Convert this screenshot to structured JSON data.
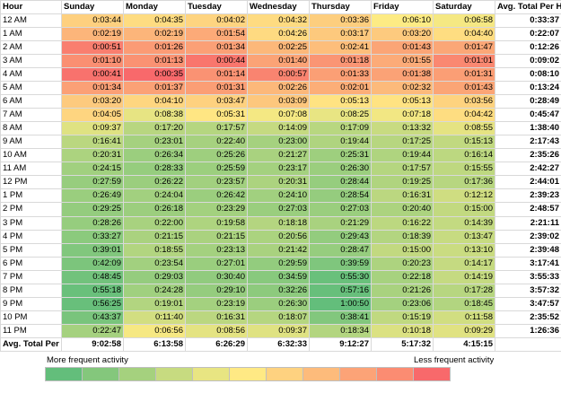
{
  "headers": [
    "Hour",
    "Sunday",
    "Monday",
    "Tuesday",
    "Wednesday",
    "Thursday",
    "Friday",
    "Saturday",
    "Avg. Total Per H"
  ],
  "rows": [
    {
      "hour": "12 AM",
      "values": [
        "0:03:44",
        "0:04:35",
        "0:04:02",
        "0:04:32",
        "0:03:36",
        "0:06:10",
        "0:06:58"
      ],
      "total": "0:33:37"
    },
    {
      "hour": "1 AM",
      "values": [
        "0:02:19",
        "0:02:19",
        "0:01:54",
        "0:04:26",
        "0:03:17",
        "0:03:20",
        "0:04:40"
      ],
      "total": "0:22:07"
    },
    {
      "hour": "2 AM",
      "values": [
        "0:00:51",
        "0:01:26",
        "0:01:34",
        "0:02:25",
        "0:02:41",
        "0:01:43",
        "0:01:47"
      ],
      "total": "0:12:26"
    },
    {
      "hour": "3 AM",
      "values": [
        "0:01:10",
        "0:01:13",
        "0:00:44",
        "0:01:40",
        "0:01:18",
        "0:01:55",
        "0:01:01"
      ],
      "total": "0:09:02"
    },
    {
      "hour": "4 AM",
      "values": [
        "0:00:41",
        "0:00:35",
        "0:01:14",
        "0:00:57",
        "0:01:33",
        "0:01:38",
        "0:01:31"
      ],
      "total": "0:08:10"
    },
    {
      "hour": "5 AM",
      "values": [
        "0:01:34",
        "0:01:37",
        "0:01:31",
        "0:02:26",
        "0:02:01",
        "0:02:32",
        "0:01:43"
      ],
      "total": "0:13:24"
    },
    {
      "hour": "6 AM",
      "values": [
        "0:03:20",
        "0:04:10",
        "0:03:47",
        "0:03:09",
        "0:05:13",
        "0:05:13",
        "0:03:56"
      ],
      "total": "0:28:49"
    },
    {
      "hour": "7 AM",
      "values": [
        "0:04:05",
        "0:08:38",
        "0:05:31",
        "0:07:08",
        "0:08:25",
        "0:07:18",
        "0:04:42"
      ],
      "total": "0:45:47"
    },
    {
      "hour": "8 AM",
      "values": [
        "0:09:37",
        "0:17:20",
        "0:17:57",
        "0:14:09",
        "0:17:09",
        "0:13:32",
        "0:08:55"
      ],
      "total": "1:38:40"
    },
    {
      "hour": "9 AM",
      "values": [
        "0:16:41",
        "0:23:01",
        "0:22:40",
        "0:23:00",
        "0:19:44",
        "0:17:25",
        "0:15:13"
      ],
      "total": "2:17:43"
    },
    {
      "hour": "10 AM",
      "values": [
        "0:20:31",
        "0:26:34",
        "0:25:26",
        "0:21:27",
        "0:25:31",
        "0:19:44",
        "0:16:14"
      ],
      "total": "2:35:26"
    },
    {
      "hour": "11 AM",
      "values": [
        "0:24:15",
        "0:28:33",
        "0:25:59",
        "0:23:17",
        "0:26:30",
        "0:17:57",
        "0:15:55"
      ],
      "total": "2:42:27"
    },
    {
      "hour": "12 PM",
      "values": [
        "0:27:59",
        "0:26:22",
        "0:23:57",
        "0:20:31",
        "0:28:44",
        "0:19:25",
        "0:17:36"
      ],
      "total": "2:44:01"
    },
    {
      "hour": "1 PM",
      "values": [
        "0:26:49",
        "0:24:04",
        "0:26:42",
        "0:24:10",
        "0:28:54",
        "0:16:31",
        "0:12:12"
      ],
      "total": "2:39:23"
    },
    {
      "hour": "2 PM",
      "values": [
        "0:29:25",
        "0:26:18",
        "0:23:29",
        "0:27:03",
        "0:27:03",
        "0:20:40",
        "0:15:00"
      ],
      "total": "2:48:57"
    },
    {
      "hour": "3 PM",
      "values": [
        "0:28:26",
        "0:22:00",
        "0:19:58",
        "0:18:18",
        "0:21:29",
        "0:16:22",
        "0:14:39"
      ],
      "total": "2:21:11"
    },
    {
      "hour": "4 PM",
      "values": [
        "0:33:27",
        "0:21:15",
        "0:21:15",
        "0:20:56",
        "0:29:43",
        "0:18:39",
        "0:13:47"
      ],
      "total": "2:39:02"
    },
    {
      "hour": "5 PM",
      "values": [
        "0:39:01",
        "0:18:55",
        "0:23:13",
        "0:21:42",
        "0:28:47",
        "0:15:00",
        "0:13:10"
      ],
      "total": "2:39:48"
    },
    {
      "hour": "6 PM",
      "values": [
        "0:42:09",
        "0:23:54",
        "0:27:01",
        "0:29:59",
        "0:39:59",
        "0:20:23",
        "0:14:17"
      ],
      "total": "3:17:41"
    },
    {
      "hour": "7 PM",
      "values": [
        "0:48:45",
        "0:29:03",
        "0:30:40",
        "0:34:59",
        "0:55:30",
        "0:22:18",
        "0:14:19"
      ],
      "total": "3:55:33"
    },
    {
      "hour": "8 PM",
      "values": [
        "0:55:18",
        "0:24:28",
        "0:29:10",
        "0:32:26",
        "0:57:16",
        "0:21:26",
        "0:17:28"
      ],
      "total": "3:57:32"
    },
    {
      "hour": "9 PM",
      "values": [
        "0:56:25",
        "0:19:01",
        "0:23:19",
        "0:26:30",
        "1:00:50",
        "0:23:06",
        "0:18:45"
      ],
      "total": "3:47:57"
    },
    {
      "hour": "10 PM",
      "values": [
        "0:43:37",
        "0:11:40",
        "0:16:31",
        "0:18:07",
        "0:38:41",
        "0:15:19",
        "0:11:58"
      ],
      "total": "2:35:52"
    },
    {
      "hour": "11 PM",
      "values": [
        "0:22:47",
        "0:06:56",
        "0:08:56",
        "0:09:37",
        "0:18:34",
        "0:10:18",
        "0:09:29"
      ],
      "total": "1:26:36"
    }
  ],
  "totals": {
    "label": "Avg. Total Per",
    "values": [
      "9:02:58",
      "6:13:58",
      "6:26:29",
      "6:32:33",
      "9:12:27",
      "5:17:32",
      "4:15:15"
    ]
  },
  "legend": {
    "more_label": "More frequent activity",
    "less_label": "Less frequent activity",
    "colors": [
      "#63be7b",
      "#84c77c",
      "#a5d17e",
      "#c7db80",
      "#e8e582",
      "#ffe984",
      "#fed280",
      "#fdbb7b",
      "#fca377",
      "#fb8c72",
      "#f8696b"
    ]
  }
}
